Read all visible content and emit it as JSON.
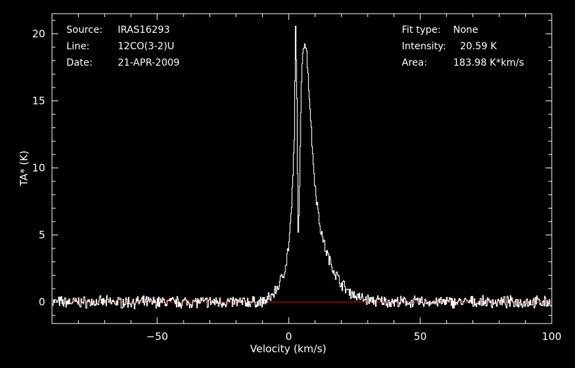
{
  "header": {
    "left": [
      {
        "label": "Source:",
        "value": "IRAS16293"
      },
      {
        "label": "Line:",
        "value": "12CO(3-2)U"
      },
      {
        "label": "Date:",
        "value": "21-APR-2009"
      }
    ],
    "right": [
      {
        "label": "Fit type:",
        "value": "None"
      },
      {
        "label": "Intensity:",
        "value": "20.59 K"
      },
      {
        "label": "Area:",
        "value": "183.98 K*km/s"
      }
    ]
  },
  "chart_data": {
    "type": "line",
    "xlabel": "Velocity (km/s)",
    "ylabel": "TA* (K)",
    "xlim": [
      -90,
      100
    ],
    "ylim": [
      -1.6,
      21.5
    ],
    "xticks": [
      -50,
      0,
      50,
      100
    ],
    "yticks": [
      0,
      5,
      10,
      15,
      20
    ],
    "baseline_y": 0,
    "colors": {
      "background": "#000000",
      "line": "#ffffff",
      "baseline": "#cc0000",
      "axes": "#ffffff"
    },
    "series": [
      {
        "values_description": "",
        "x": [
          -90,
          -60,
          -30,
          -15,
          -10,
          -8,
          -6,
          -4,
          -2,
          -1,
          0,
          1,
          2,
          2.5,
          3,
          3.5,
          4,
          4.5,
          5,
          5.5,
          6,
          6.5,
          7,
          8,
          9,
          10,
          11,
          12,
          13,
          14,
          15,
          16,
          18,
          20,
          22,
          25,
          28,
          32,
          40,
          60,
          80,
          100
        ],
        "y": [
          0,
          0,
          0,
          0,
          0,
          0.2,
          0.6,
          1.2,
          2.2,
          3.0,
          4.5,
          7.0,
          12.0,
          20.6,
          15.0,
          5.0,
          8.5,
          14.0,
          18.0,
          19.2,
          19.4,
          19.0,
          17.8,
          14.5,
          11.0,
          8.5,
          6.8,
          5.5,
          4.6,
          3.9,
          3.3,
          2.8,
          2.0,
          1.4,
          0.9,
          0.5,
          0.25,
          0.1,
          0,
          0,
          0,
          0
        ]
      }
    ]
  }
}
